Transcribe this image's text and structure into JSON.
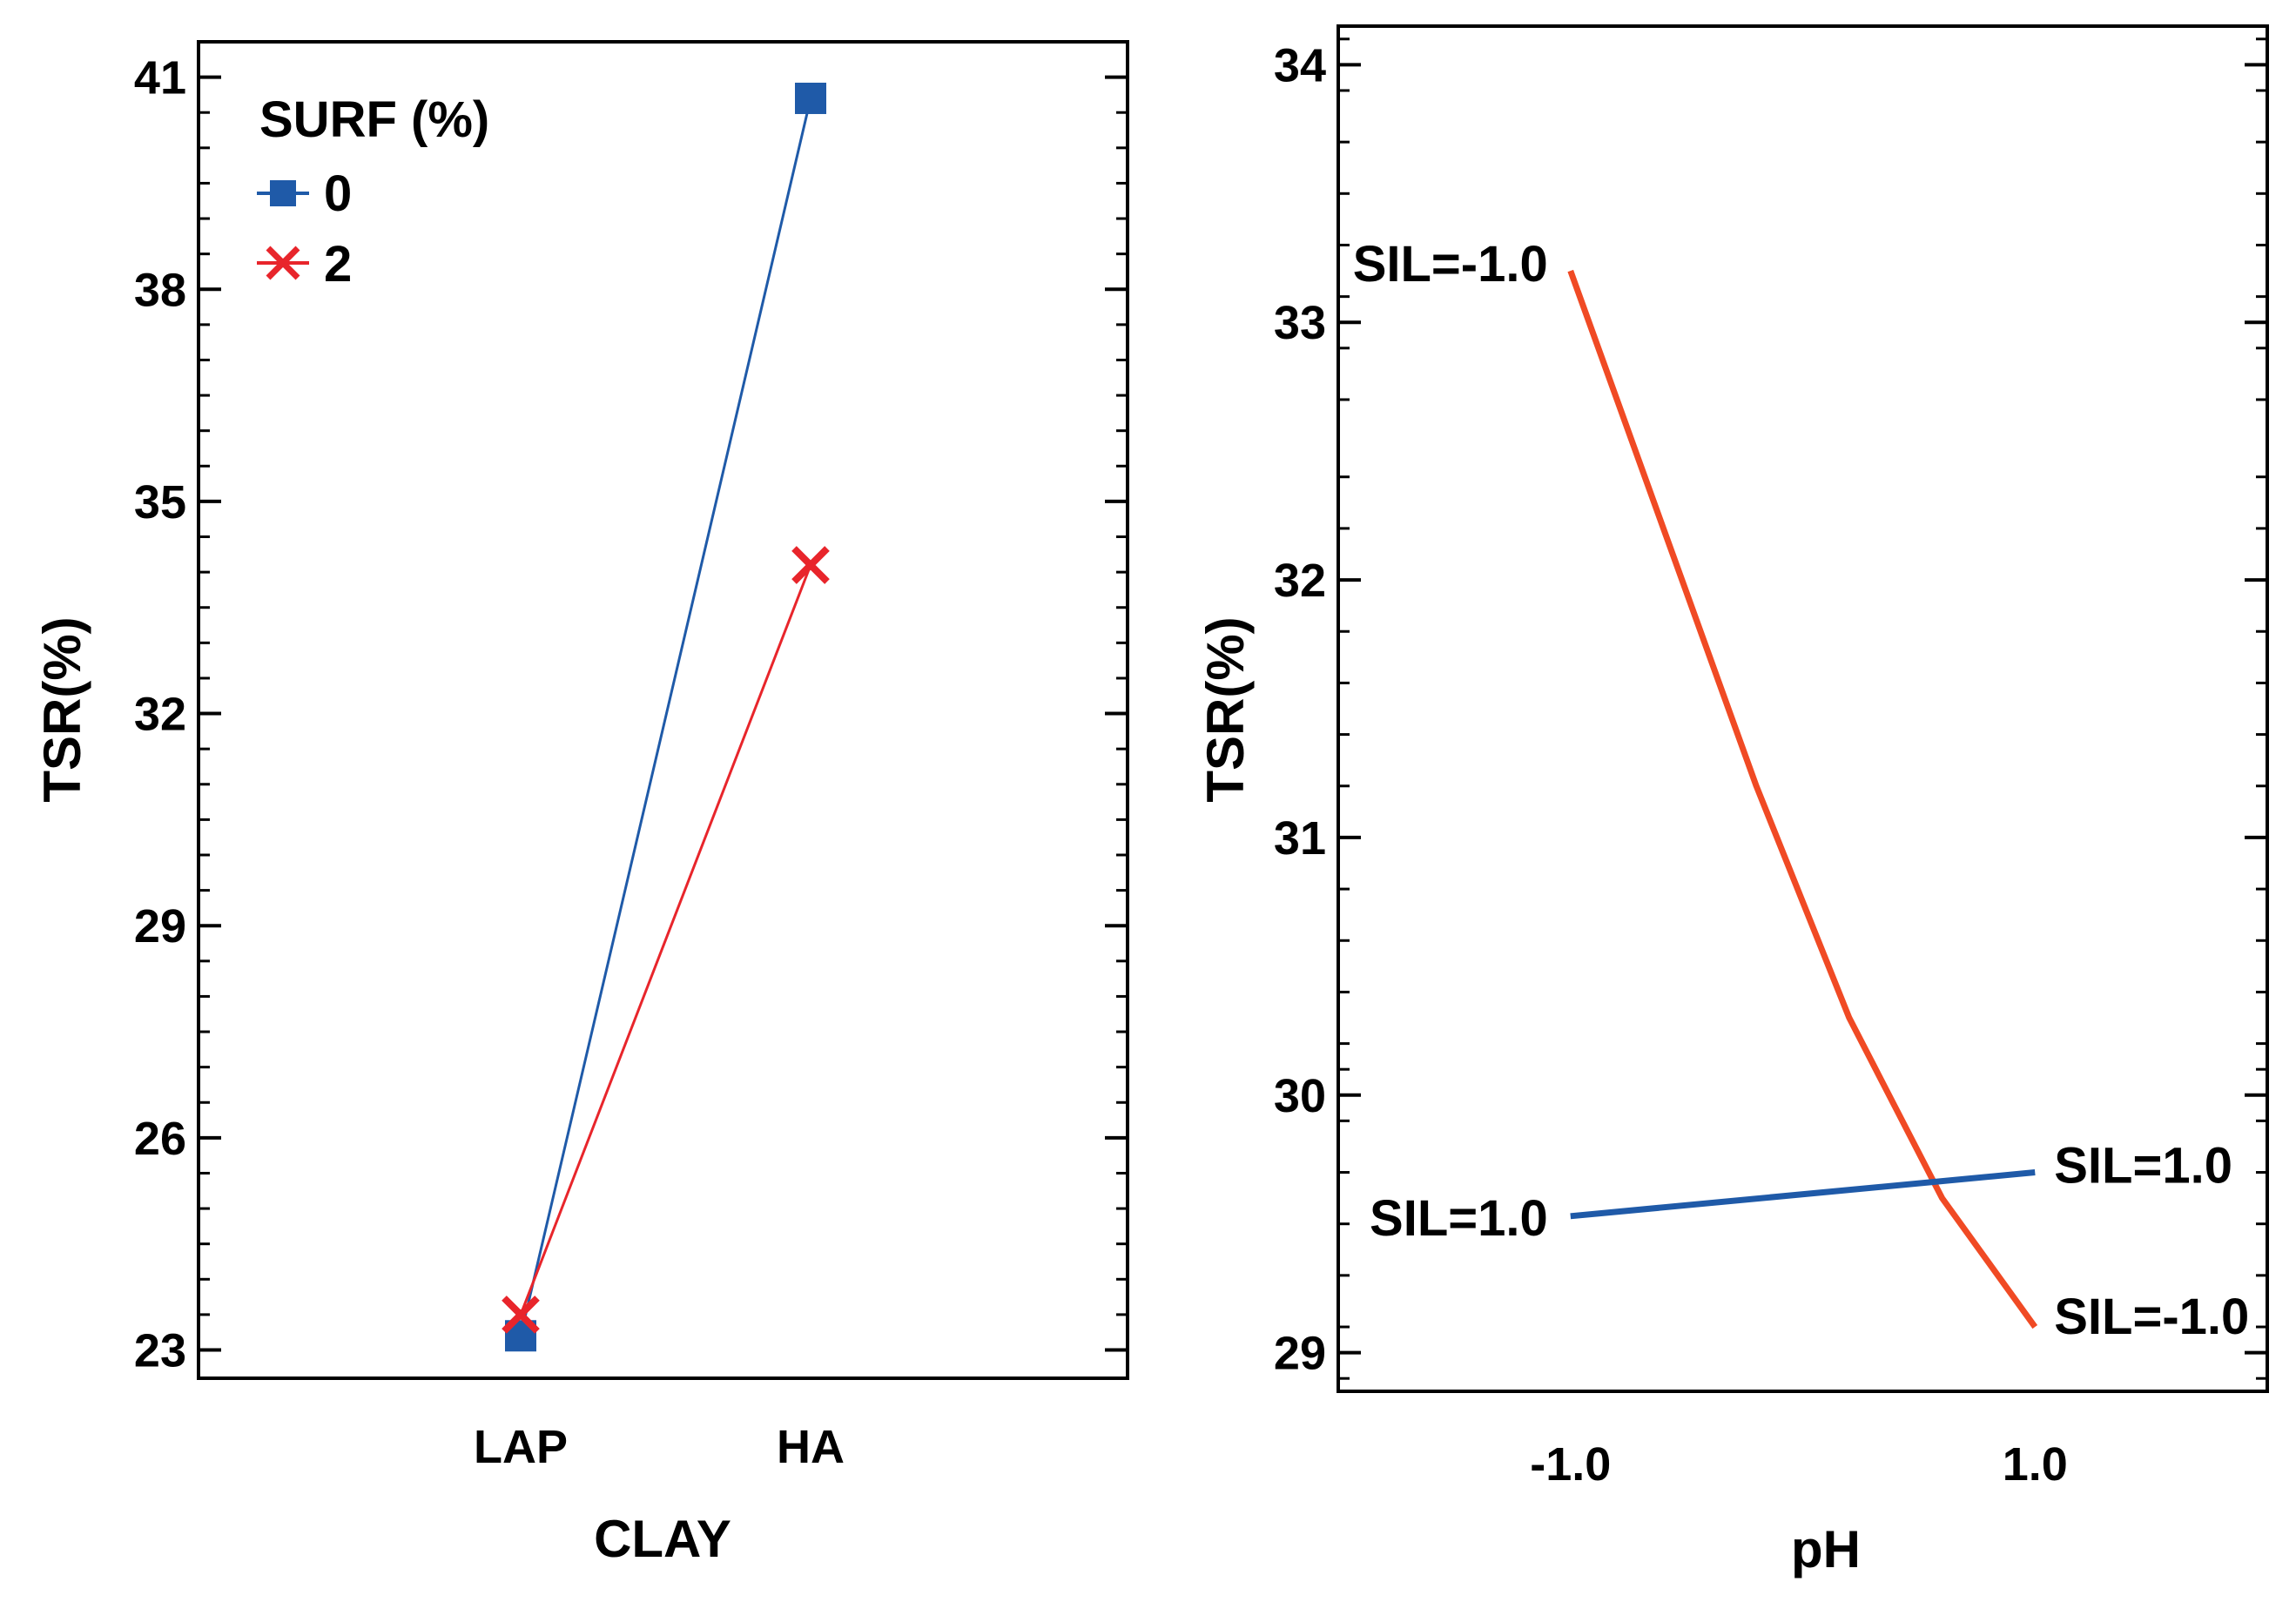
{
  "chart_data": [
    {
      "type": "line",
      "xlabel": "CLAY",
      "ylabel": "TSR(%)",
      "categories": [
        "LAP",
        "HA"
      ],
      "ylim": [
        22.6,
        41.5
      ],
      "yticks": [
        23,
        26,
        29,
        32,
        35,
        38,
        41
      ],
      "yticks_labels": [
        "23",
        "26",
        "29",
        "32",
        "35",
        "38",
        "41"
      ],
      "legend": {
        "title": "SURF (%)",
        "placement": "top-left"
      },
      "series": [
        {
          "name": "0",
          "values": [
            23.2,
            40.7
          ],
          "color": "#1f5aa8",
          "marker": "square"
        },
        {
          "name": "2",
          "values": [
            23.5,
            34.1
          ],
          "color": "#e8252b",
          "marker": "x"
        }
      ]
    },
    {
      "type": "line",
      "xlabel": "pH",
      "ylabel": "TSR(%)",
      "xlim": [
        -2.0,
        2.0
      ],
      "xticks": [
        -1.0,
        1.0
      ],
      "xticks_labels": [
        "-1.0",
        "1.0"
      ],
      "ylim": [
        28.85,
        34.15
      ],
      "yticks": [
        29,
        30,
        31,
        32,
        33,
        34
      ],
      "yticks_labels": [
        "29",
        "30",
        "31",
        "32",
        "33",
        "34"
      ],
      "series": [
        {
          "name": "",
          "color": "#f04a24",
          "x": [
            -1.0,
            -0.8,
            -0.6,
            -0.4,
            -0.2,
            0.0,
            0.2,
            0.4,
            0.6,
            0.8,
            1.0
          ],
          "y": [
            33.2,
            32.7,
            32.2,
            31.7,
            31.2,
            30.75,
            30.3,
            29.95,
            29.6,
            29.35,
            29.1
          ],
          "label_start": "SIL=-1.0",
          "label_end": "SIL=-1.0"
        },
        {
          "name": "",
          "color": "#1f5aa8",
          "x": [
            -1.0,
            1.0
          ],
          "y": [
            29.53,
            29.7
          ],
          "label_start": "SIL=1.0",
          "label_end": "SIL=1.0"
        }
      ]
    }
  ]
}
